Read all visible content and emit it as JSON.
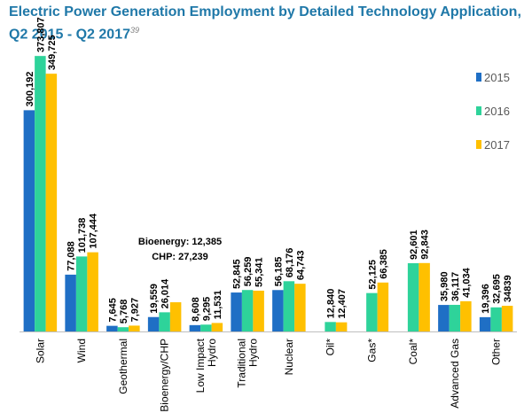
{
  "title": "Electric Power Generation Employment by Detailed Technology Application, Q2 2015 - Q2 2017",
  "title_footnote": "39",
  "chart_data": {
    "type": "bar",
    "title": "Electric Power Generation Employment by Detailed Technology Application, Q2 2015 - Q2 2017",
    "xlabel": "",
    "ylabel": "",
    "ylim": [
      0,
      380000
    ],
    "grid": false,
    "legend_position": "right",
    "categories": [
      "Solar",
      "Wind",
      "Geothermal",
      "Bioenergy/CHP",
      "Low Impact Hydro",
      "Traditional Hydro",
      "Nuclear",
      "Oil*",
      "Gas*",
      "Coal*",
      "Advanced Gas",
      "Other"
    ],
    "category_lines": [
      [
        "Solar"
      ],
      [
        "Wind"
      ],
      [
        "Geothermal"
      ],
      [
        "Bioenergy/CHP"
      ],
      [
        "Low Impact",
        "Hydro"
      ],
      [
        "Traditional",
        "Hydro"
      ],
      [
        "Nuclear"
      ],
      [
        "Oil*"
      ],
      [
        "Gas*"
      ],
      [
        "Coal*"
      ],
      [
        "Advanced Gas"
      ],
      [
        "Other"
      ]
    ],
    "series": [
      {
        "name": "2015",
        "color": "#1f6fc5",
        "values": [
          300192,
          77088,
          7645,
          19559,
          8608,
          52845,
          56185,
          null,
          null,
          null,
          35980,
          19396
        ],
        "labels": [
          "300,192",
          "77,088",
          "7,645",
          "19,559",
          "8,608",
          "52,845",
          "56,185",
          "",
          "",
          "",
          "35,980",
          "19,396"
        ]
      },
      {
        "name": "2016",
        "color": "#2ed39a",
        "values": [
          373807,
          101738,
          5768,
          26014,
          9295,
          56259,
          68176,
          12840,
          52125,
          92601,
          36117,
          32695
        ],
        "labels": [
          "373,807",
          "101,738",
          "5,768",
          "26,014",
          "9,295",
          "56,259",
          "68,176",
          "12,840",
          "52,125",
          "92,601",
          "36,117",
          "32,695"
        ]
      },
      {
        "name": "2017",
        "color": "#ffc000",
        "values": [
          349725,
          107444,
          7927,
          39624,
          11531,
          55341,
          64743,
          12407,
          66385,
          92843,
          41034,
          34839
        ],
        "labels": [
          "349,725",
          "107,444",
          "7,927",
          "",
          "11,531",
          "55,341",
          "64,743",
          "12,407",
          "66,385",
          "92,843",
          "41,034",
          "34839"
        ]
      }
    ],
    "annotations": [
      "Bioenergy: 12,385",
      "CHP: 27,239"
    ]
  }
}
